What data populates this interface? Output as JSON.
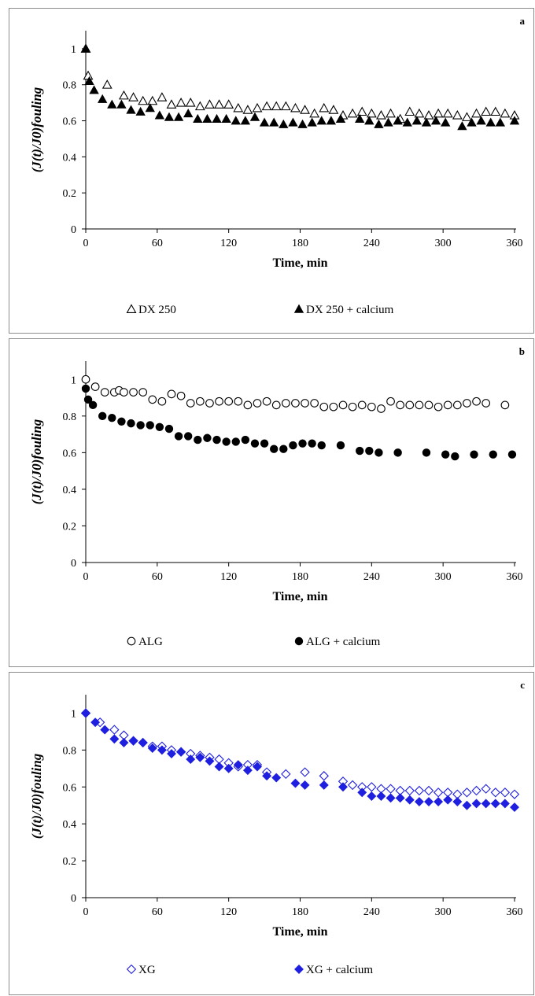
{
  "chart_data": [
    {
      "type": "scatter",
      "panel_label": "a",
      "xlabel": "Time, min",
      "ylabel": "(J(t)/J0)fouling",
      "xlim": [
        0,
        360
      ],
      "ylim": [
        0,
        1.1
      ],
      "xticks": [
        "0",
        "60",
        "120",
        "180",
        "240",
        "300",
        "360"
      ],
      "yticks": [
        "0",
        "0.2",
        "0.4",
        "0.6",
        "0.8",
        "1"
      ],
      "grid": false,
      "legend_position": "bottom",
      "marker_color": "#000000",
      "series": [
        {
          "name": "DX 250",
          "marker": "triangle-open",
          "x": [
            0,
            2,
            18,
            32,
            40,
            48,
            56,
            64,
            72,
            80,
            88,
            96,
            104,
            112,
            120,
            128,
            136,
            144,
            152,
            160,
            168,
            176,
            184,
            192,
            200,
            208,
            216,
            224,
            232,
            240,
            248,
            256,
            264,
            272,
            280,
            288,
            296,
            304,
            312,
            320,
            328,
            336,
            344,
            352,
            360
          ],
          "y": [
            1.0,
            0.85,
            0.8,
            0.74,
            0.73,
            0.71,
            0.71,
            0.73,
            0.69,
            0.7,
            0.7,
            0.68,
            0.69,
            0.69,
            0.69,
            0.67,
            0.66,
            0.67,
            0.68,
            0.68,
            0.68,
            0.67,
            0.66,
            0.64,
            0.67,
            0.66,
            0.63,
            0.64,
            0.65,
            0.64,
            0.63,
            0.64,
            0.61,
            0.65,
            0.64,
            0.63,
            0.64,
            0.64,
            0.63,
            0.62,
            0.64,
            0.65,
            0.65,
            0.64,
            0.63
          ]
        },
        {
          "name": "DX 250 + calcium",
          "marker": "triangle-filled",
          "x": [
            0,
            3,
            7,
            14,
            22,
            30,
            38,
            46,
            54,
            62,
            70,
            78,
            86,
            94,
            102,
            110,
            118,
            126,
            134,
            142,
            150,
            158,
            166,
            174,
            182,
            190,
            198,
            206,
            214,
            230,
            238,
            246,
            254,
            262,
            270,
            278,
            286,
            294,
            302,
            316,
            324,
            332,
            340,
            348,
            360
          ],
          "y": [
            1.0,
            0.82,
            0.77,
            0.72,
            0.69,
            0.69,
            0.66,
            0.65,
            0.67,
            0.63,
            0.62,
            0.62,
            0.64,
            0.61,
            0.61,
            0.61,
            0.61,
            0.6,
            0.6,
            0.62,
            0.59,
            0.59,
            0.58,
            0.59,
            0.58,
            0.59,
            0.6,
            0.6,
            0.61,
            0.61,
            0.6,
            0.58,
            0.59,
            0.6,
            0.59,
            0.6,
            0.59,
            0.6,
            0.59,
            0.57,
            0.59,
            0.6,
            0.59,
            0.59,
            0.6
          ]
        }
      ]
    },
    {
      "type": "scatter",
      "panel_label": "b",
      "xlabel": "Time, min",
      "ylabel": "(J(t)/J0)fouling",
      "xlim": [
        0,
        360
      ],
      "ylim": [
        0,
        1.1
      ],
      "xticks": [
        "0",
        "60",
        "120",
        "180",
        "240",
        "300",
        "360"
      ],
      "yticks": [
        "0",
        "0.2",
        "0.4",
        "0.6",
        "0.8",
        "1"
      ],
      "grid": false,
      "legend_position": "bottom",
      "marker_color": "#000000",
      "series": [
        {
          "name": "ALG",
          "marker": "circle-open",
          "x": [
            0,
            8,
            16,
            24,
            28,
            32,
            40,
            48,
            56,
            64,
            72,
            80,
            88,
            96,
            104,
            112,
            120,
            128,
            136,
            144,
            152,
            160,
            168,
            176,
            184,
            192,
            200,
            208,
            216,
            224,
            232,
            240,
            248,
            256,
            264,
            272,
            280,
            288,
            296,
            304,
            312,
            320,
            328,
            336,
            352
          ],
          "y": [
            1.0,
            0.96,
            0.93,
            0.93,
            0.94,
            0.93,
            0.93,
            0.93,
            0.89,
            0.88,
            0.92,
            0.91,
            0.87,
            0.88,
            0.87,
            0.88,
            0.88,
            0.88,
            0.86,
            0.87,
            0.88,
            0.86,
            0.87,
            0.87,
            0.87,
            0.87,
            0.85,
            0.85,
            0.86,
            0.85,
            0.86,
            0.85,
            0.84,
            0.88,
            0.86,
            0.86,
            0.86,
            0.86,
            0.85,
            0.86,
            0.86,
            0.87,
            0.88,
            0.87,
            0.86
          ]
        },
        {
          "name": "ALG + calcium",
          "marker": "circle-filled",
          "x": [
            0,
            2,
            6,
            14,
            22,
            30,
            38,
            46,
            54,
            62,
            70,
            78,
            86,
            94,
            102,
            110,
            118,
            126,
            134,
            142,
            150,
            158,
            166,
            174,
            182,
            190,
            198,
            214,
            230,
            238,
            246,
            262,
            286,
            302,
            310,
            326,
            342,
            358
          ],
          "y": [
            0.95,
            0.89,
            0.86,
            0.8,
            0.79,
            0.77,
            0.76,
            0.75,
            0.75,
            0.74,
            0.73,
            0.69,
            0.69,
            0.67,
            0.68,
            0.67,
            0.66,
            0.66,
            0.67,
            0.65,
            0.65,
            0.62,
            0.62,
            0.64,
            0.65,
            0.65,
            0.64,
            0.64,
            0.61,
            0.61,
            0.6,
            0.6,
            0.6,
            0.59,
            0.58,
            0.59,
            0.59,
            0.59
          ]
        }
      ]
    },
    {
      "type": "scatter",
      "panel_label": "c",
      "xlabel": "Time, min",
      "ylabel": "(J(t)/J0)fouling",
      "xlim": [
        0,
        360
      ],
      "ylim": [
        0,
        1.1
      ],
      "xticks": [
        "0",
        "60",
        "120",
        "180",
        "240",
        "300",
        "360"
      ],
      "yticks": [
        "0",
        "0.2",
        "0.4",
        "0.6",
        "0.8",
        "1"
      ],
      "grid": false,
      "legend_position": "bottom",
      "marker_color": "#1f1fe0",
      "series": [
        {
          "name": "XG",
          "marker": "diamond-open",
          "x": [
            0,
            12,
            24,
            32,
            40,
            48,
            56,
            64,
            72,
            80,
            88,
            96,
            104,
            112,
            120,
            128,
            136,
            144,
            152,
            168,
            184,
            200,
            216,
            224,
            232,
            240,
            248,
            256,
            264,
            272,
            280,
            288,
            296,
            304,
            312,
            320,
            328,
            336,
            344,
            352,
            360
          ],
          "y": [
            1.0,
            0.95,
            0.91,
            0.88,
            0.85,
            0.84,
            0.82,
            0.82,
            0.8,
            0.79,
            0.78,
            0.77,
            0.76,
            0.75,
            0.73,
            0.71,
            0.72,
            0.72,
            0.68,
            0.67,
            0.68,
            0.66,
            0.63,
            0.61,
            0.6,
            0.6,
            0.59,
            0.59,
            0.58,
            0.58,
            0.58,
            0.58,
            0.57,
            0.57,
            0.56,
            0.57,
            0.58,
            0.59,
            0.57,
            0.57,
            0.56
          ]
        },
        {
          "name": "XG + calcium",
          "marker": "diamond-filled",
          "x": [
            0,
            8,
            16,
            24,
            32,
            40,
            48,
            56,
            64,
            72,
            80,
            88,
            96,
            104,
            112,
            120,
            128,
            136,
            144,
            152,
            160,
            176,
            184,
            200,
            216,
            232,
            240,
            248,
            256,
            264,
            272,
            280,
            288,
            296,
            304,
            312,
            320,
            328,
            336,
            344,
            352,
            360
          ],
          "y": [
            1.0,
            0.95,
            0.91,
            0.86,
            0.84,
            0.85,
            0.84,
            0.81,
            0.8,
            0.78,
            0.79,
            0.75,
            0.76,
            0.74,
            0.71,
            0.7,
            0.72,
            0.69,
            0.71,
            0.66,
            0.65,
            0.62,
            0.61,
            0.61,
            0.6,
            0.57,
            0.55,
            0.55,
            0.54,
            0.54,
            0.53,
            0.52,
            0.52,
            0.52,
            0.53,
            0.52,
            0.5,
            0.51,
            0.51,
            0.51,
            0.51,
            0.49
          ]
        }
      ]
    }
  ]
}
